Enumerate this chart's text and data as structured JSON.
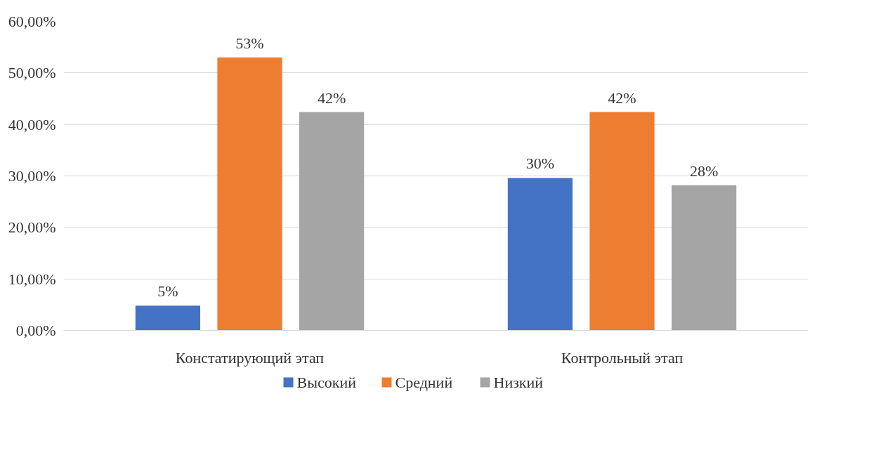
{
  "chart_data": {
    "type": "bar",
    "categories": [
      "Констатирующий этап",
      "Контрольный этап"
    ],
    "series": [
      {
        "name": "Высокий",
        "color": "#4472c4",
        "values": [
          4.8,
          29.6
        ],
        "value_labels": [
          "5%",
          "30%"
        ]
      },
      {
        "name": "Средний",
        "color": "#ed7d31",
        "values": [
          53.0,
          42.4
        ],
        "value_labels": [
          "53%",
          "42%"
        ]
      },
      {
        "name": "Низкий",
        "color": "#a5a5a5",
        "values": [
          42.4,
          28.2
        ],
        "value_labels": [
          "42%",
          "28%"
        ]
      }
    ],
    "ylim": [
      0,
      60
    ],
    "yticks": [
      {
        "value": 0,
        "label": "0,00%"
      },
      {
        "value": 10,
        "label": "10,00%"
      },
      {
        "value": 20,
        "label": "20,00%"
      },
      {
        "value": 30,
        "label": "30,00%"
      },
      {
        "value": 40,
        "label": "40,00%"
      },
      {
        "value": 50,
        "label": "50,00%"
      },
      {
        "value": 60,
        "label": "60,00%"
      }
    ],
    "grid": "y",
    "legend": "bottom"
  }
}
